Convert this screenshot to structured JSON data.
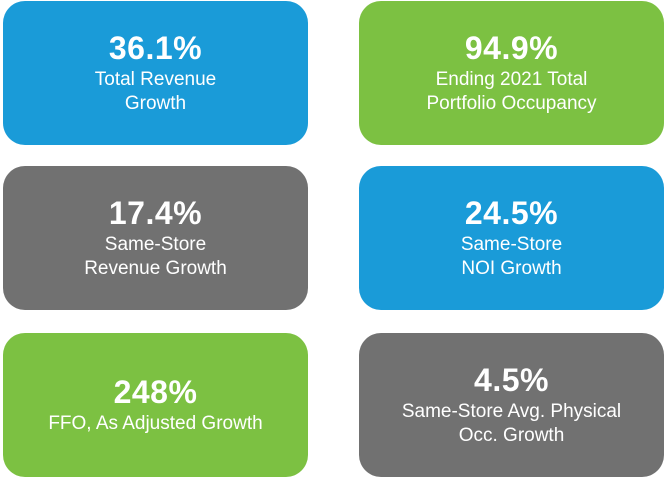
{
  "colors": {
    "blue": "#1a9bd8",
    "green": "#7cc142",
    "gray": "#717171"
  },
  "tiles": [
    {
      "value": "36.1%",
      "label": "Total Revenue\nGrowth",
      "color": "#1a9bd8"
    },
    {
      "value": "94.9%",
      "label": "Ending 2021 Total\nPortfolio Occupancy",
      "color": "#7cc142"
    },
    {
      "value": "17.4%",
      "label": "Same-Store\nRevenue Growth",
      "color": "#717171"
    },
    {
      "value": "24.5%",
      "label": "Same-Store\nNOI Growth",
      "color": "#1a9bd8"
    },
    {
      "value": "248%",
      "label": "FFO, As Adjusted Growth",
      "color": "#7cc142"
    },
    {
      "value": "4.5%",
      "label": "Same-Store Avg. Physical\nOcc. Growth",
      "color": "#717171"
    }
  ]
}
